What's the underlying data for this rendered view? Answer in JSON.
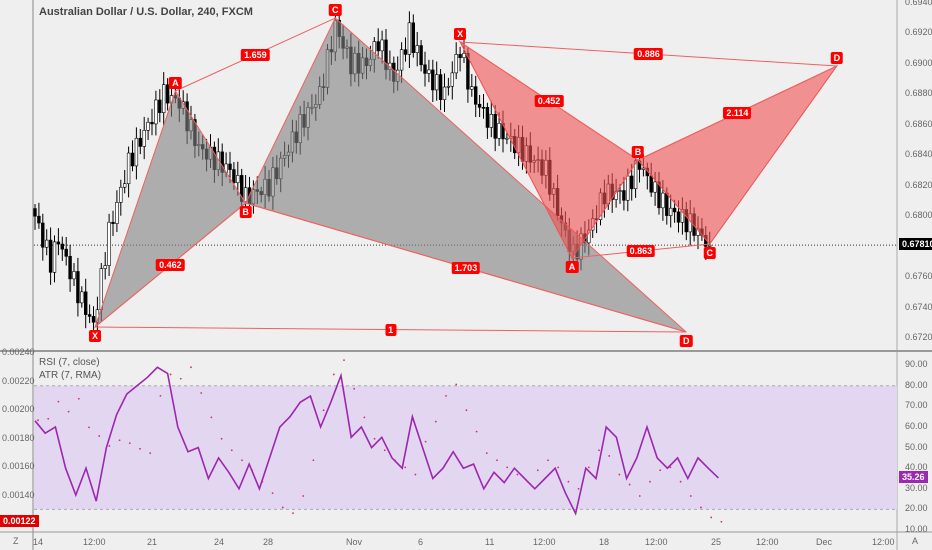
{
  "header": {
    "title": "Australian Dollar / U.S. Dollar, 240, FXCM"
  },
  "price_axis": {
    "labels": [
      "0.69400",
      "0.69200",
      "0.69000",
      "0.68800",
      "0.68600",
      "0.68400",
      "0.68200",
      "0.68000",
      "0.67600",
      "0.67400",
      "0.67200"
    ],
    "current_price": "0.67810",
    "current_color": "#000000"
  },
  "rsi_axis": {
    "labels": [
      "90.00",
      "80.00",
      "70.00",
      "60.00",
      "50.00",
      "40.00",
      "30.00",
      "20.00",
      "10.00"
    ],
    "current": "35.26",
    "current_color": "#9c27b0"
  },
  "atr_axis": {
    "labels": [
      "0.00240",
      "0.00220",
      "0.00200",
      "0.00180",
      "0.00160",
      "0.00140"
    ],
    "current": "0.00122",
    "current_color": "#e00000"
  },
  "indicators": {
    "rsi": "RSI (7, close)",
    "atr": "ATR (7, RMA)"
  },
  "time_axis": {
    "labels": [
      "14",
      "12:00",
      "21",
      "24",
      "28",
      "Nov",
      "6",
      "11",
      "12:00",
      "18",
      "12:00",
      "25",
      "12:00",
      "Dec",
      "12:00"
    ],
    "left_button": "Z",
    "right_button": "A"
  },
  "chart_data": {
    "type": "candlestick",
    "price_range": [
      0.671,
      0.6945
    ],
    "price_keypoints": [
      [
        0,
        0.68
      ],
      [
        4,
        0.677
      ],
      [
        6,
        0.6785
      ],
      [
        11,
        0.675
      ],
      [
        15,
        0.6728
      ],
      [
        19,
        0.679
      ],
      [
        24,
        0.6835
      ],
      [
        29,
        0.686
      ],
      [
        33,
        0.688
      ],
      [
        37,
        0.6875
      ],
      [
        42,
        0.6845
      ],
      [
        50,
        0.683
      ],
      [
        54,
        0.6812
      ],
      [
        60,
        0.682
      ],
      [
        68,
        0.686
      ],
      [
        73,
        0.688
      ],
      [
        77,
        0.6925
      ],
      [
        81,
        0.69
      ],
      [
        85,
        0.69
      ],
      [
        88,
        0.6915
      ],
      [
        92,
        0.689
      ],
      [
        96,
        0.692
      ],
      [
        100,
        0.6895
      ],
      [
        105,
        0.688
      ],
      [
        109,
        0.691
      ],
      [
        112,
        0.688
      ],
      [
        117,
        0.686
      ],
      [
        124,
        0.6845
      ],
      [
        131,
        0.683
      ],
      [
        135,
        0.6795
      ],
      [
        138,
        0.6775
      ],
      [
        142,
        0.679
      ],
      [
        146,
        0.6815
      ],
      [
        151,
        0.6815
      ],
      [
        155,
        0.6835
      ],
      [
        158,
        0.682
      ],
      [
        162,
        0.6805
      ],
      [
        168,
        0.6795
      ],
      [
        173,
        0.6781
      ]
    ],
    "patterns": [
      {
        "color": "#808080",
        "points": [
          {
            "label": "X",
            "bar": 15.4,
            "price": 0.67272
          },
          {
            "label": "A",
            "bar": 36,
            "price": 0.68822
          },
          {
            "label": "B",
            "bar": 54,
            "price": 0.68086
          },
          {
            "label": "C",
            "bar": 77,
            "price": 0.69301
          },
          {
            "label": "D",
            "bar": 167,
            "price": 0.67239
          }
        ],
        "ratios": {
          "xb": "0.462",
          "ac": "1.659",
          "bd": "1.703",
          "xd": "1"
        }
      },
      {
        "color": "#f05050",
        "points": [
          {
            "label": "X",
            "bar": 109,
            "price": 0.69144
          },
          {
            "label": "A",
            "bar": 137.7,
            "price": 0.67725
          },
          {
            "label": "B",
            "bar": 154.6,
            "price": 0.68369
          },
          {
            "label": "C",
            "bar": 173,
            "price": 0.67817
          },
          {
            "label": "D",
            "bar": 205.6,
            "price": 0.68986
          }
        ],
        "ratios": {
          "xb": "0.452",
          "ac": "0.863",
          "bd": "2.114",
          "xd": "0.886"
        }
      }
    ],
    "rsi": [
      63,
      57,
      60,
      40,
      27,
      40,
      24,
      50,
      66,
      76,
      80,
      84,
      89,
      86,
      60,
      48,
      50,
      35,
      45,
      38,
      30,
      42,
      30,
      45,
      60,
      65,
      72,
      75,
      60,
      72,
      85,
      55,
      60,
      50,
      55,
      45,
      40,
      65,
      50,
      35,
      40,
      48,
      40,
      42,
      30,
      38,
      33,
      40,
      35,
      30,
      35,
      40,
      28,
      18,
      40,
      35,
      60,
      55,
      35,
      45,
      60,
      45,
      40,
      45,
      35,
      45,
      40,
      35.26
    ],
    "atr": [
      0.00193,
      0.00194,
      0.00206,
      0.00199,
      0.00208,
      0.00188,
      0.00182,
      0.00175,
      0.00179,
      0.00177,
      0.00173,
      0.0017,
      0.0021,
      0.00225,
      0.00222,
      0.0023,
      0.00212,
      0.00195,
      0.0018,
      0.00172,
      0.00165,
      0.00158,
      0.0015,
      0.00142,
      0.00132,
      0.00128,
      0.0014,
      0.00165,
      0.002,
      0.00225,
      0.00235,
      0.00215,
      0.00195,
      0.0018,
      0.00172,
      0.00165,
      0.0016,
      0.00155,
      0.00178,
      0.00192,
      0.0021,
      0.00218,
      0.002,
      0.00185,
      0.0017,
      0.00165,
      0.0016,
      0.00155,
      0.0015,
      0.00158,
      0.00165,
      0.0016,
      0.0015,
      0.00145,
      0.0016,
      0.00172,
      0.00168,
      0.00155,
      0.00148,
      0.0014,
      0.0015,
      0.00158,
      0.0016,
      0.0015,
      0.0014,
      0.00132,
      0.00125,
      0.00122
    ]
  }
}
